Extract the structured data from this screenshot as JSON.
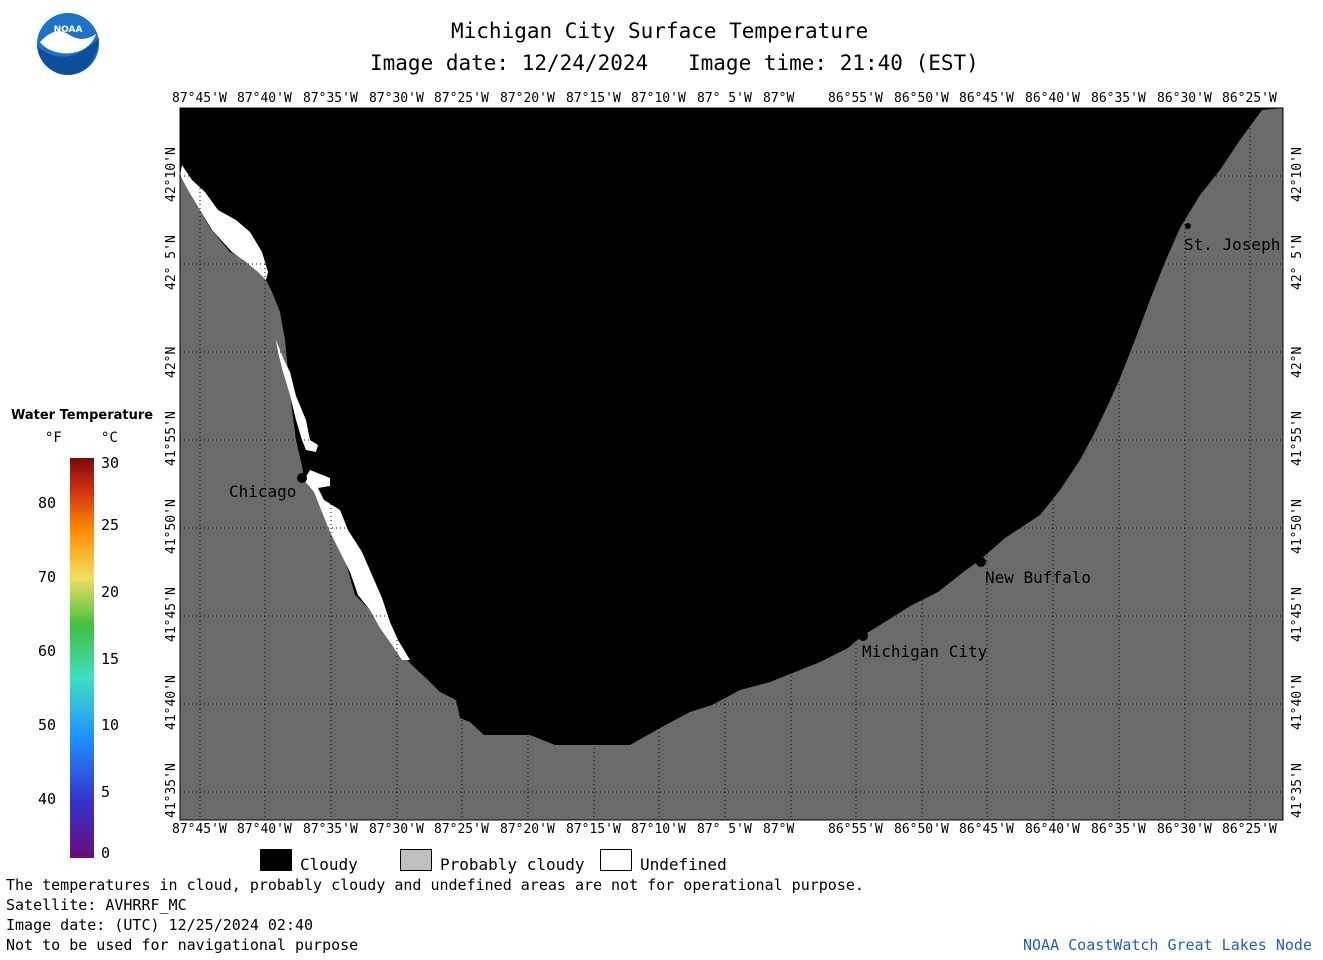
{
  "header": {
    "title": "Michigan City Surface Temperature",
    "date_label": "Image date: 12/24/2024",
    "time_label": "Image time: 21:40 (EST)"
  },
  "logo": {
    "text": "NOAA"
  },
  "longitude_labels": [
    "87°45'W",
    "87°40'W",
    "87°35'W",
    "87°30'W",
    "87°25'W",
    "87°20'W",
    "87°15'W",
    "87°10'W",
    "87° 5'W",
    "87°W",
    "86°55'W",
    "86°50'W",
    "86°45'W",
    "86°40'W",
    "86°35'W",
    "86°30'W",
    "86°25'W"
  ],
  "latitude_labels": [
    "42°10'N",
    "42° 5'N",
    "42°N",
    "41°55'N",
    "41°50'N",
    "41°45'N",
    "41°40'N",
    "41°35'N"
  ],
  "places": [
    {
      "name": "Chicago"
    },
    {
      "name": "St. Joseph"
    },
    {
      "name": "New Buffalo"
    },
    {
      "name": "Michigan City"
    }
  ],
  "temperature_scale": {
    "title": "Water Temperature",
    "unit_f": "°F",
    "unit_c": "°C",
    "f_ticks": [
      "80",
      "70",
      "60",
      "50",
      "40"
    ],
    "c_ticks": [
      "30",
      "25",
      "20",
      "15",
      "10",
      "5",
      "0"
    ]
  },
  "legend": {
    "cloudy": "Cloudy",
    "probably_cloudy": "Probably cloudy",
    "undefined": "Undefined",
    "colors": {
      "cloudy": "#000000",
      "probably_cloudy": "#c0c0c0",
      "undefined": "#ffffff",
      "land": "#6b6b6b"
    }
  },
  "footer": {
    "note": "The temperatures in cloud, probably cloudy and undefined areas are not for operational purpose.",
    "satellite": "Satellite: AVHRRF_MC",
    "utc_date": "Image date: (UTC) 12/25/2024  02:40",
    "warning": "Not to be used for navigational purpose",
    "credit": "NOAA CoastWatch Great Lakes Node"
  }
}
